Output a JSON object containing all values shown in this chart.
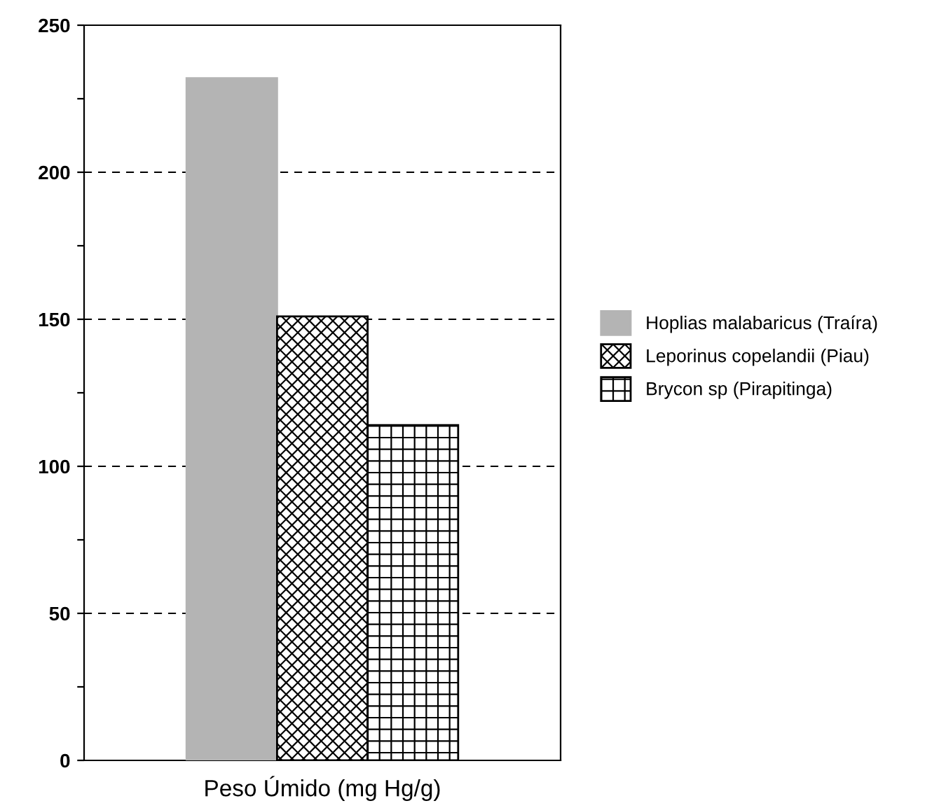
{
  "chart_data": {
    "type": "bar",
    "categories": [
      "Peso Úmido (mg Hg/g)"
    ],
    "series": [
      {
        "name": "Hoplias malabaricus (Traíra)",
        "color": "#b4b4b4",
        "values": [
          232
        ]
      },
      {
        "name": "Leporinus copelandii (Piau)",
        "color": "#000000",
        "values": [
          151
        ]
      },
      {
        "name": "Brycon sp (Pirapitinga)",
        "color": "#000000",
        "values": [
          114
        ]
      }
    ],
    "ylim": [
      0,
      250
    ],
    "yticks": [
      0,
      {
        "value": 25,
        "label": null
      },
      50,
      {
        "value": 75,
        "label": null
      },
      100,
      {
        "value": 125,
        "label": null
      },
      150,
      {
        "value": 175,
        "label": null
      },
      200,
      {
        "value": 225,
        "label": null
      },
      250
    ],
    "grid": "y",
    "legend": "right"
  }
}
